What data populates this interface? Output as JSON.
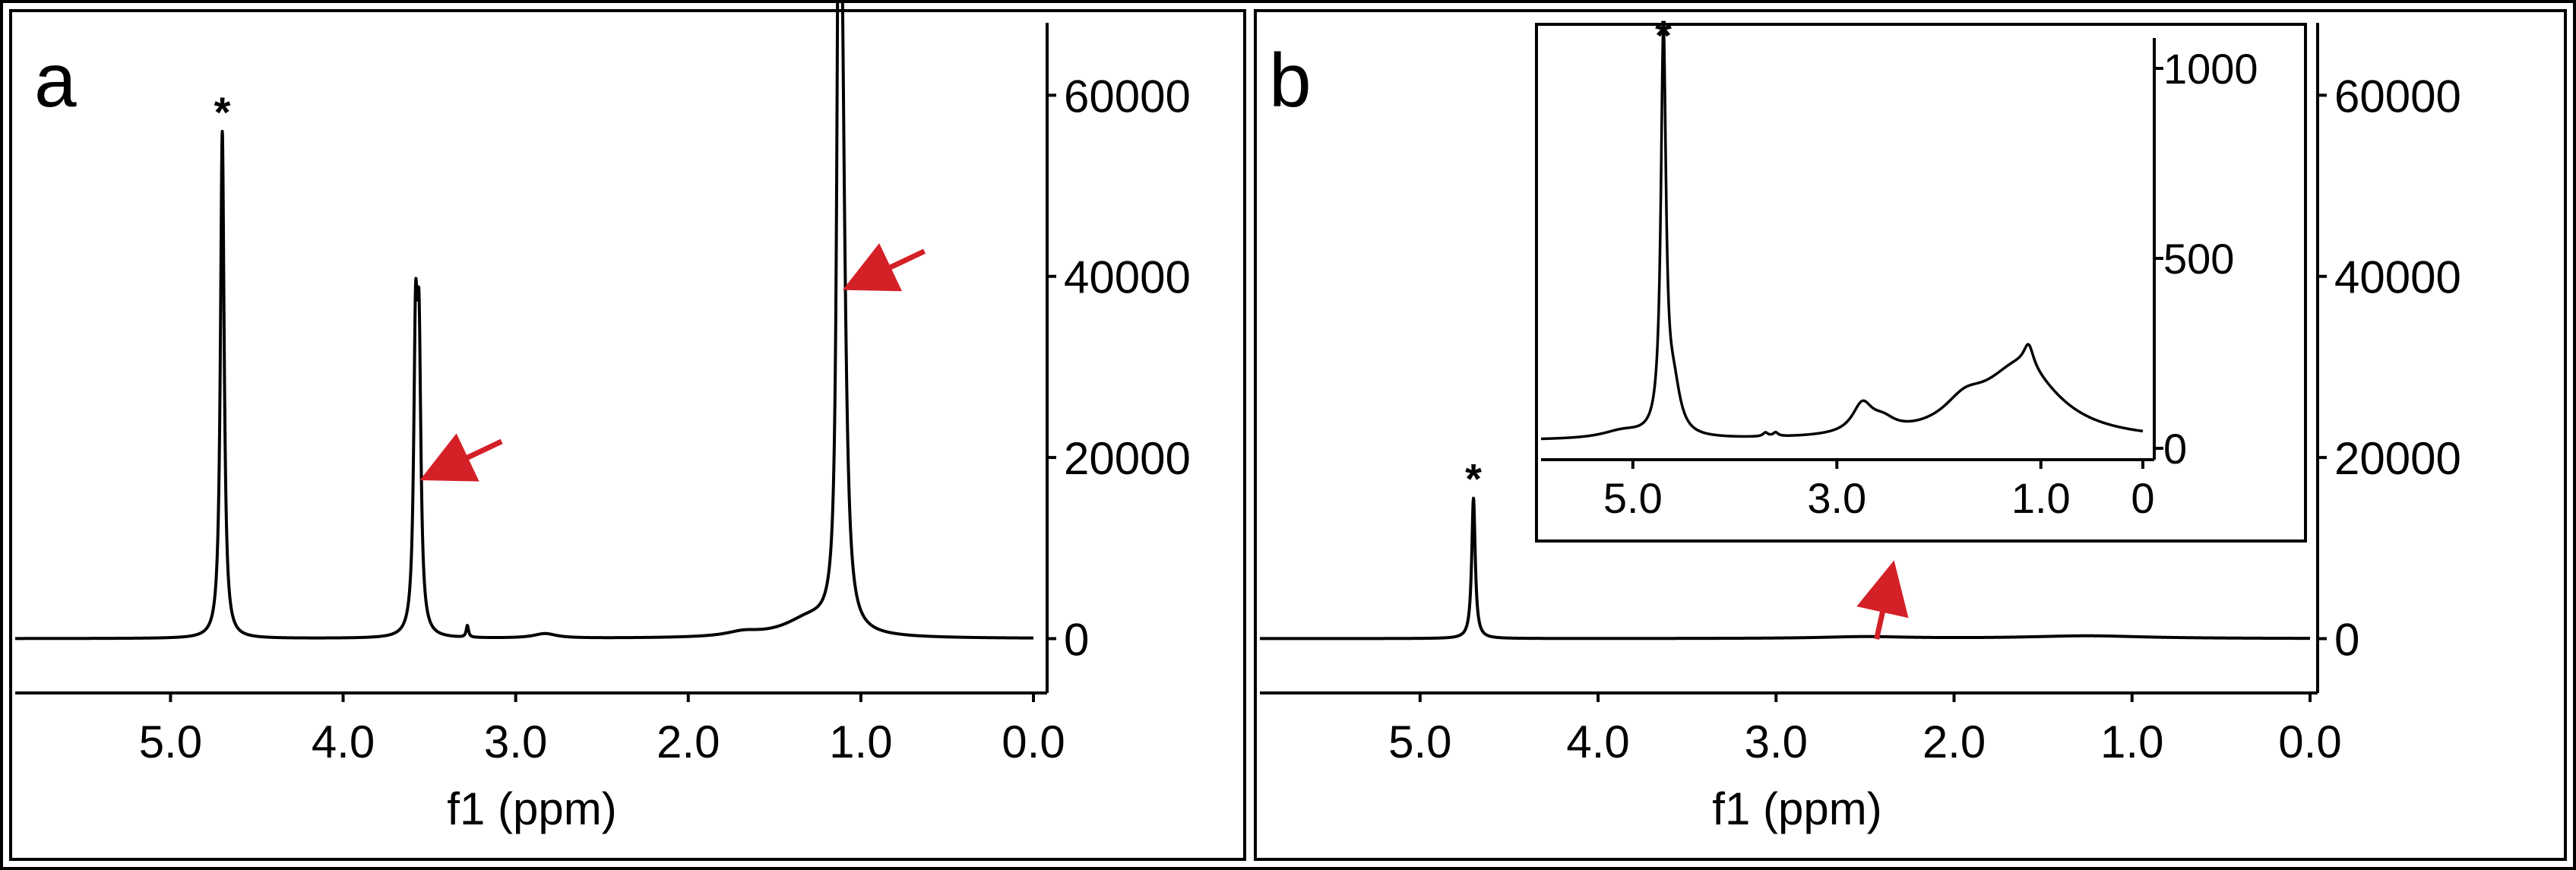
{
  "colors": {
    "line": "#000000",
    "arrow": "#d42027",
    "background": "#ffffff"
  },
  "chart_data": [
    {
      "type": "line",
      "panel_label": "a",
      "xlabel": "f1 (ppm)",
      "x_reversed": true,
      "xlim": [
        5.9,
        0.0
      ],
      "ylim": [
        -6000,
        68000
      ],
      "x_ticks": [
        5.0,
        4.0,
        3.0,
        2.0,
        1.0,
        0.0
      ],
      "x_tick_labels": [
        "5.0",
        "4.0",
        "3.0",
        "2.0",
        "1.0",
        "0.0"
      ],
      "y_ticks": [
        0,
        20000,
        40000,
        60000
      ],
      "y_tick_labels": [
        "0",
        "20000",
        "40000",
        "60000"
      ],
      "y_axis_side": "right",
      "series": [
        {
          "baseline": 0,
          "peaks": [
            {
              "x": 4.7,
              "y": 56000,
              "width": 0.013
            },
            {
              "x": 3.58,
              "y": 30500,
              "width": 0.013
            },
            {
              "x": 3.56,
              "y": 29000,
              "width": 0.013
            },
            {
              "x": 3.28,
              "y": 1300,
              "width": 0.008
            },
            {
              "x": 2.83,
              "y": 500,
              "width": 0.08
            },
            {
              "x": 1.68,
              "y": 500,
              "width": 0.12
            },
            {
              "x": 1.3,
              "y": 2000,
              "width": 0.18
            },
            {
              "x": 1.13,
              "y": 62000,
              "width": 0.012
            },
            {
              "x": 1.11,
              "y": 36000,
              "width": 0.014
            },
            {
              "x": 1.1,
              "y": 25000,
              "width": 0.025
            }
          ]
        }
      ],
      "annotations": [
        {
          "text": "*",
          "x": 4.7,
          "y": 56000
        }
      ],
      "arrows": [
        {
          "x": 3.5,
          "y": 18000
        },
        {
          "x": 1.05,
          "y": 39000
        }
      ]
    },
    {
      "type": "line",
      "panel_label": "b",
      "xlabel": "f1 (ppm)",
      "x_reversed": true,
      "xlim": [
        5.9,
        0.0
      ],
      "ylim": [
        -6000,
        68000
      ],
      "x_ticks": [
        5.0,
        4.0,
        3.0,
        2.0,
        1.0,
        0.0
      ],
      "x_tick_labels": [
        "5.0",
        "4.0",
        "3.0",
        "2.0",
        "1.0",
        "0.0"
      ],
      "y_ticks": [
        0,
        20000,
        40000,
        60000
      ],
      "y_tick_labels": [
        "0",
        "20000",
        "40000",
        "60000"
      ],
      "y_axis_side": "right",
      "series": [
        {
          "baseline": 0,
          "peaks": [
            {
              "x": 4.7,
              "y": 15500,
              "width": 0.012
            },
            {
              "x": 2.5,
              "y": 200,
              "width": 0.3
            },
            {
              "x": 1.25,
              "y": 300,
              "width": 0.4
            }
          ]
        }
      ],
      "annotations": [
        {
          "text": "*",
          "x": 4.7,
          "y": 15500
        }
      ],
      "arrows": [
        {
          "x": 2.35,
          "y": 7500
        }
      ],
      "inset": {
        "type": "line",
        "xlim": [
          5.9,
          0.0
        ],
        "ylim": [
          -30,
          1080
        ],
        "x_ticks": [
          5.0,
          3.0,
          1.0,
          0.0
        ],
        "x_tick_labels": [
          "5.0",
          "3.0",
          "1.0",
          "0"
        ],
        "y_ticks": [
          0,
          500,
          1000
        ],
        "y_tick_labels": [
          "0",
          "500",
          "1000"
        ],
        "y_axis_side": "right",
        "series": [
          {
            "baseline": 20,
            "peaks": [
              {
                "x": 4.7,
                "y": 1040,
                "width": 0.03
              },
              {
                "x": 4.6,
                "y": 120,
                "width": 0.08
              },
              {
                "x": 5.1,
                "y": 20,
                "width": 0.25
              },
              {
                "x": 3.7,
                "y": 10,
                "width": 0.03
              },
              {
                "x": 3.6,
                "y": 10,
                "width": 0.03
              },
              {
                "x": 2.75,
                "y": 75,
                "width": 0.12
              },
              {
                "x": 2.55,
                "y": 30,
                "width": 0.15
              },
              {
                "x": 1.75,
                "y": 60,
                "width": 0.25
              },
              {
                "x": 1.2,
                "y": 190,
                "width": 0.45
              },
              {
                "x": 1.12,
                "y": 60,
                "width": 0.06
              }
            ]
          }
        ],
        "annotations": [
          {
            "text": "*",
            "x": 4.7,
            "y": 1040
          }
        ]
      }
    }
  ]
}
